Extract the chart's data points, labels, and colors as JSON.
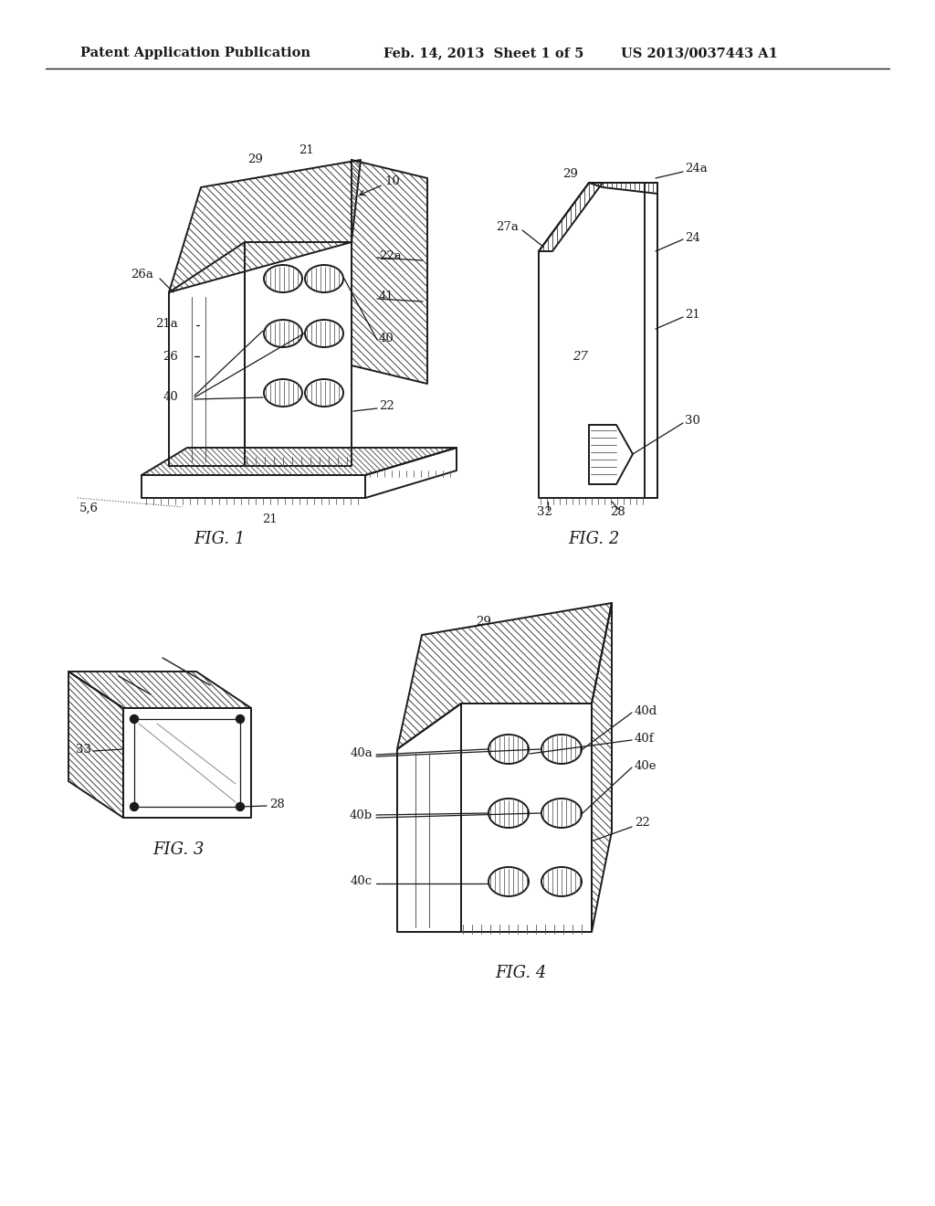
{
  "bg_color": "#ffffff",
  "line_color": "#1a1a1a",
  "header_left": "Patent Application Publication",
  "header_mid": "Feb. 14, 2013  Sheet 1 of 5",
  "header_right": "US 2013/0037443 A1",
  "fig1_label": "FIG. 1",
  "fig2_label": "FIG. 2",
  "fig3_label": "FIG. 3",
  "fig4_label": "FIG. 4"
}
